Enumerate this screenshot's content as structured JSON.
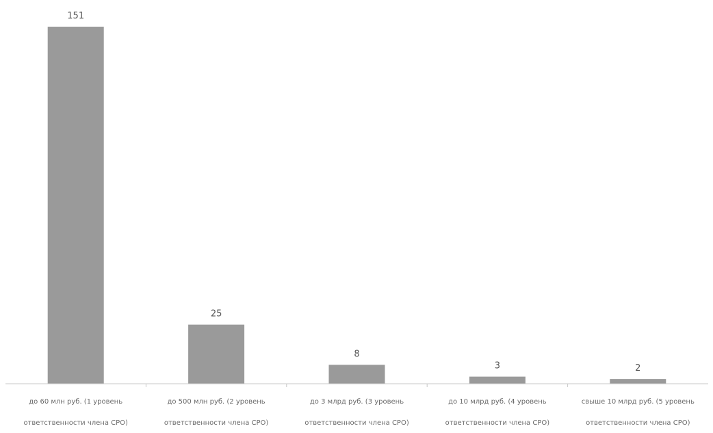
{
  "chart_data": {
    "type": "bar",
    "title": "",
    "xlabel": "",
    "ylabel": "",
    "categories": [
      [
        "до 60 млн руб. (1 уровень",
        "ответственности члена СРО)"
      ],
      [
        "до 500 млн руб. (2 уровень",
        "ответственности члена СРО)"
      ],
      [
        "до 3 млрд руб. (3 уровень",
        "ответственности члена СРО)"
      ],
      [
        "до 10 млрд руб. (4 уровень",
        "ответственности члена СРО)"
      ],
      [
        "свыше 10 млрд руб. (5 уровень",
        "ответственности члена СРО)"
      ]
    ],
    "values": [
      151,
      25,
      8,
      3,
      2
    ],
    "data_labels": [
      "151",
      "25",
      "8",
      "3",
      "2"
    ],
    "ylim": [
      0,
      155
    ],
    "grid": false,
    "legend": "none",
    "colors": {
      "bar": "#9a9a9a",
      "axis": "#c8c8c8",
      "text": "#555555"
    }
  }
}
